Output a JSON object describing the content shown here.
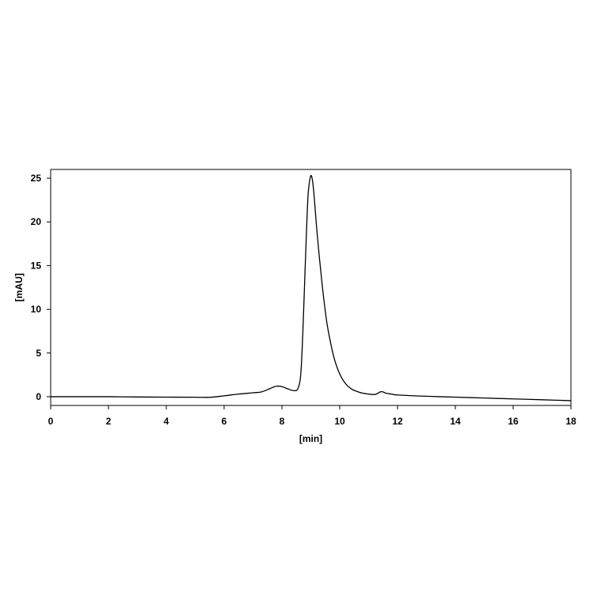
{
  "chart_data": {
    "type": "line",
    "title": "",
    "xlabel": "[min]",
    "ylabel": "[mAU]",
    "xlim": [
      0,
      18
    ],
    "ylim": [
      -1,
      26
    ],
    "xticks": [
      0,
      2,
      4,
      6,
      8,
      10,
      12,
      14,
      16,
      18
    ],
    "yticks": [
      0,
      5,
      10,
      15,
      20,
      25
    ],
    "grid": false,
    "colors": {
      "line": "#000000",
      "frame": "#000000",
      "background": "#ffffff"
    },
    "series": [
      {
        "x": [
          0,
          1,
          2,
          3,
          4,
          5,
          5.5,
          6,
          6.5,
          7,
          7.3,
          7.6,
          7.8,
          8.0,
          8.2,
          8.4,
          8.55,
          8.65,
          8.72,
          8.78,
          8.84,
          8.9,
          8.95,
          9.0,
          9.05,
          9.1,
          9.15,
          9.2,
          9.3,
          9.4,
          9.5,
          9.6,
          9.8,
          10.0,
          10.2,
          10.4,
          10.6,
          10.8,
          11.0,
          11.2,
          11.3,
          11.4,
          11.5,
          11.6,
          11.8,
          12,
          13,
          14,
          15,
          16,
          17,
          18
        ],
        "y": [
          0.0,
          0.0,
          0.0,
          -0.03,
          -0.05,
          -0.06,
          -0.07,
          0.1,
          0.3,
          0.45,
          0.55,
          0.95,
          1.2,
          1.15,
          0.9,
          0.7,
          0.9,
          2.5,
          7.0,
          12.5,
          18.0,
          22.8,
          24.5,
          25.3,
          24.9,
          23.5,
          21.5,
          19.4,
          15.8,
          12.6,
          9.8,
          7.6,
          4.5,
          2.6,
          1.5,
          0.9,
          0.6,
          0.4,
          0.3,
          0.25,
          0.35,
          0.55,
          0.55,
          0.4,
          0.3,
          0.2,
          0.05,
          -0.05,
          -0.15,
          -0.25,
          -0.35,
          -0.45
        ]
      }
    ]
  }
}
